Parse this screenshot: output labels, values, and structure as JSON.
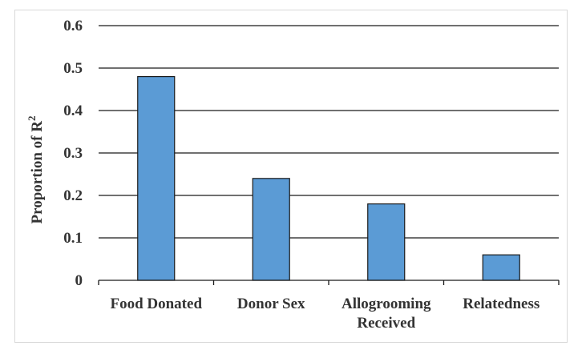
{
  "chart_data": {
    "type": "bar",
    "categories": [
      [
        "Food Donated"
      ],
      [
        "Donor Sex"
      ],
      [
        "Allogrooming",
        "Received"
      ],
      [
        "Relatedness"
      ]
    ],
    "values": [
      0.48,
      0.24,
      0.18,
      0.06
    ],
    "ylabel": "Proportion of R²",
    "ylabel_base": "Proportion of R",
    "ylabel_sup": "2",
    "xlabel": "",
    "ylim": [
      0,
      0.6
    ],
    "yticks": [
      0,
      0.1,
      0.2,
      0.3,
      0.4,
      0.5,
      0.6
    ],
    "ytick_labels": [
      "0",
      "0.1",
      "0.2",
      "0.3",
      "0.4",
      "0.5",
      "0.6"
    ],
    "grid": true,
    "legend": "none",
    "colors": {
      "bar_fill": "#5b9bd5",
      "bar_stroke": "#1a1a1a",
      "grid": "#1a1a1a",
      "text": "#333333"
    }
  }
}
